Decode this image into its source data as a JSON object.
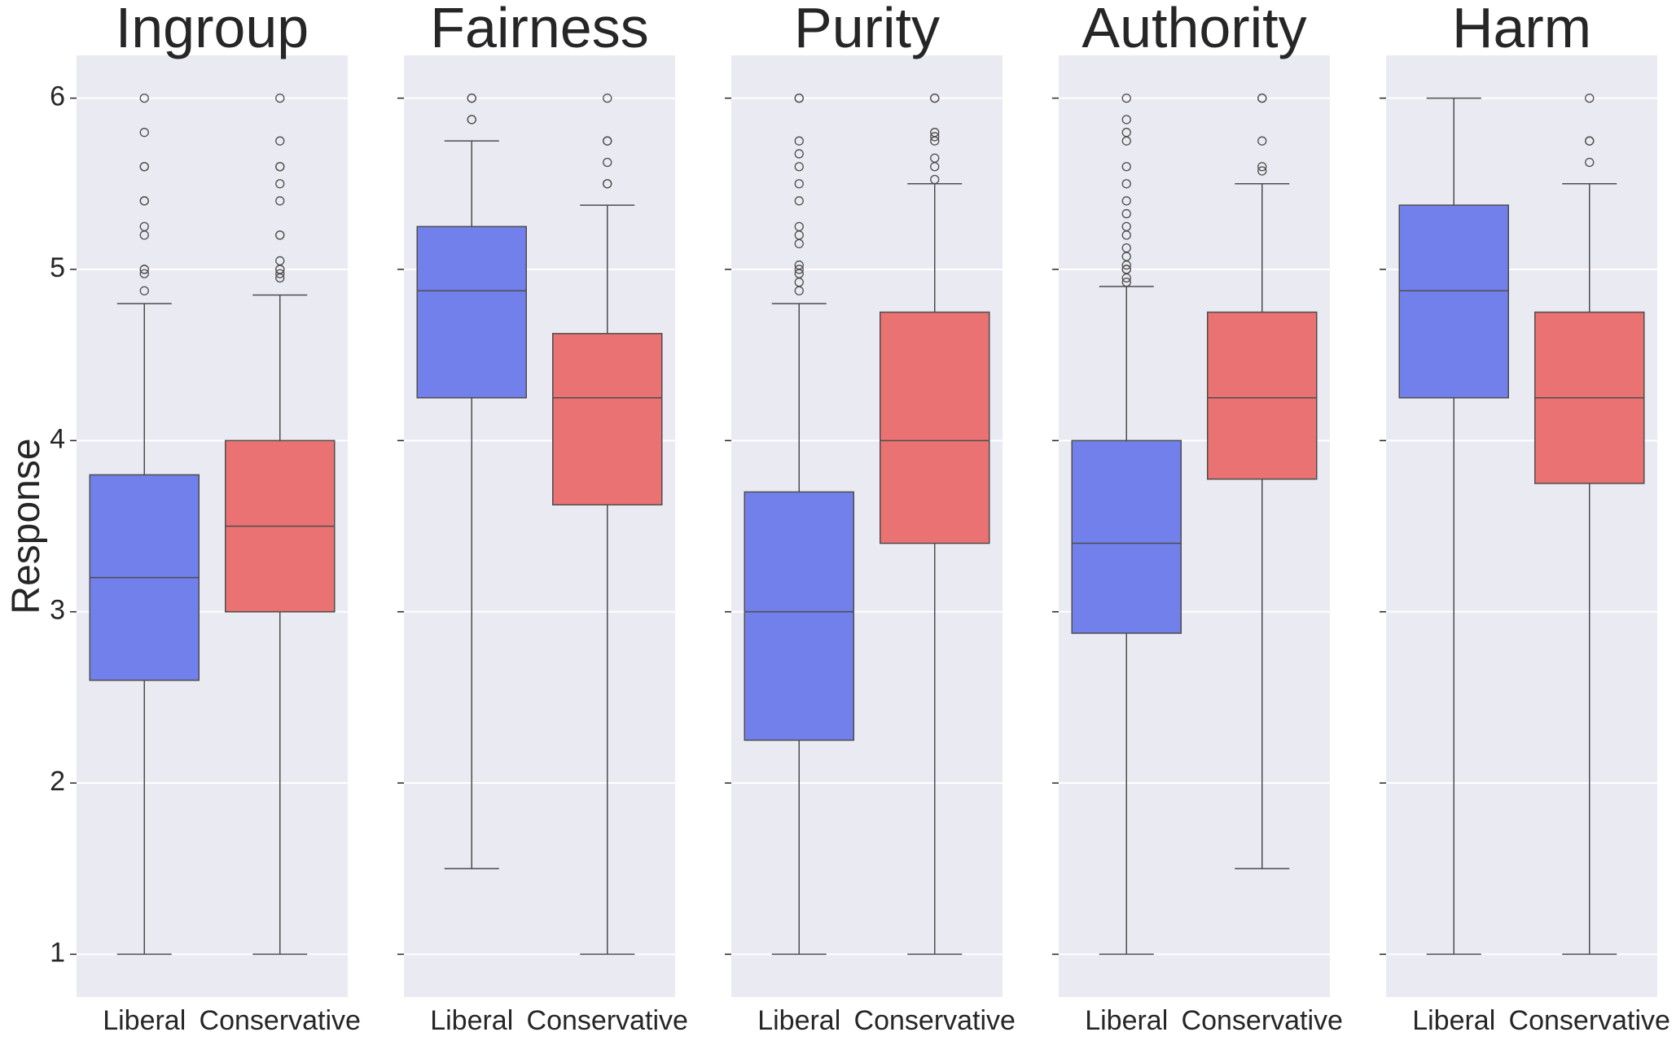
{
  "chart_data": {
    "type": "box",
    "ylabel": "Response",
    "ylim": [
      0.75,
      6.25
    ],
    "yticks": [
      1,
      2,
      3,
      4,
      5,
      6
    ],
    "grid": true,
    "categories": [
      "Liberal",
      "Conservative"
    ],
    "colors": {
      "Liberal": "#7280ec",
      "Conservative": "#eb7272"
    },
    "panels": [
      {
        "title": "Ingroup",
        "boxes": [
          {
            "group": "Liberal",
            "whislo": 1.0,
            "q1": 2.6,
            "med": 3.2,
            "q3": 3.8,
            "whishi": 4.8,
            "fliers": [
              4.875,
              5.0,
              5.0,
              4.975,
              5.2,
              5.25,
              5.4,
              5.4,
              5.6,
              5.6,
              5.8,
              6.0
            ]
          },
          {
            "group": "Conservative",
            "whislo": 1.0,
            "q1": 3.0,
            "med": 3.5,
            "q3": 4.0,
            "whishi": 4.85,
            "fliers": [
              4.95,
              4.975,
              5.0,
              5.0,
              5.05,
              5.2,
              5.2,
              5.4,
              5.5,
              5.6,
              5.6,
              5.75,
              6.0
            ]
          }
        ]
      },
      {
        "title": "Fairness",
        "boxes": [
          {
            "group": "Liberal",
            "whislo": 1.5,
            "q1": 4.25,
            "med": 4.875,
            "q3": 5.25,
            "whishi": 5.75,
            "fliers": [
              5.875,
              5.875,
              6.0,
              6.0
            ]
          },
          {
            "group": "Conservative",
            "whislo": 1.0,
            "q1": 3.625,
            "med": 4.25,
            "q3": 4.625,
            "whishi": 5.375,
            "fliers": [
              5.5,
              5.5,
              5.625,
              5.75,
              5.75,
              6.0
            ]
          }
        ]
      },
      {
        "title": "Purity",
        "boxes": [
          {
            "group": "Liberal",
            "whislo": 1.0,
            "q1": 2.25,
            "med": 3.0,
            "q3": 3.7,
            "whishi": 4.8,
            "fliers": [
              4.875,
              4.925,
              4.975,
              5.0,
              5.025,
              5.15,
              5.2,
              5.25,
              5.4,
              5.5,
              5.6,
              5.675,
              5.75,
              6.0,
              6.0
            ]
          },
          {
            "group": "Conservative",
            "whislo": 1.0,
            "q1": 3.4,
            "med": 4.0,
            "q3": 4.75,
            "whishi": 5.5,
            "fliers": [
              5.525,
              5.6,
              5.65,
              5.75,
              5.775,
              5.8,
              6.0,
              6.0
            ]
          }
        ]
      },
      {
        "title": "Authority",
        "boxes": [
          {
            "group": "Liberal",
            "whislo": 1.0,
            "q1": 2.875,
            "med": 3.4,
            "q3": 4.0,
            "whishi": 4.9,
            "fliers": [
              4.925,
              4.95,
              5.0,
              5.0,
              5.025,
              5.075,
              5.125,
              5.2,
              5.25,
              5.325,
              5.4,
              5.5,
              5.6,
              5.75,
              5.8,
              5.875,
              6.0
            ]
          },
          {
            "group": "Conservative",
            "whislo": 1.5,
            "q1": 3.775,
            "med": 4.25,
            "q3": 4.75,
            "whishi": 5.5,
            "fliers": [
              5.575,
              5.6,
              5.75,
              6.0,
              6.0
            ]
          }
        ]
      },
      {
        "title": "Harm",
        "boxes": [
          {
            "group": "Liberal",
            "whislo": 1.0,
            "q1": 4.25,
            "med": 4.875,
            "q3": 5.375,
            "whishi": 6.0,
            "fliers": []
          },
          {
            "group": "Conservative",
            "whislo": 1.0,
            "q1": 3.75,
            "med": 4.25,
            "q3": 4.75,
            "whishi": 5.5,
            "fliers": [
              5.625,
              5.75,
              5.75,
              6.0
            ]
          }
        ]
      }
    ]
  }
}
